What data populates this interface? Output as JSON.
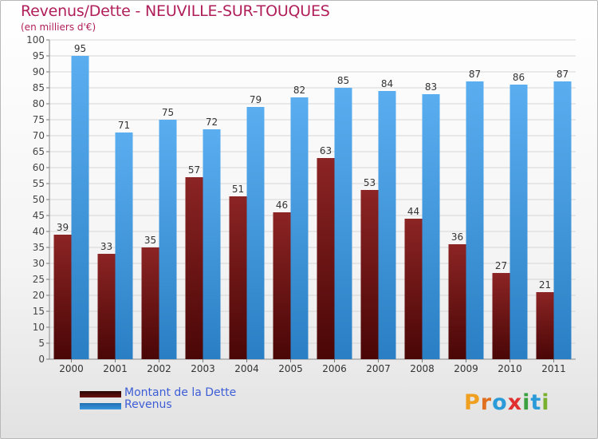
{
  "title": "Revenus/Dette - NEUVILLE-SUR-TOUQUES",
  "subtitle": "(en milliers d'€)",
  "logo": "Proxiti",
  "colors": {
    "dette": "#7a1616",
    "revenus": "#3b98e0",
    "title": "#b01e5a",
    "legend_text": "#3d5dd6",
    "grid": "#d6d6d6"
  },
  "legend": [
    {
      "label": "Montant de la Dette",
      "color": "#6b0f0f"
    },
    {
      "label": "Revenus",
      "color": "#3b98e0"
    }
  ],
  "chart_data": {
    "type": "bar",
    "title": "Revenus/Dette - NEUVILLE-SUR-TOUQUES",
    "ylabel": "(en milliers d'€)",
    "categories": [
      "2000",
      "2001",
      "2002",
      "2003",
      "2004",
      "2005",
      "2006",
      "2007",
      "2008",
      "2009",
      "2010",
      "2011"
    ],
    "series": [
      {
        "name": "Montant de la Dette",
        "values": [
          39,
          33,
          35,
          57,
          51,
          46,
          63,
          53,
          44,
          36,
          27,
          21
        ]
      },
      {
        "name": "Revenus",
        "values": [
          95,
          71,
          75,
          72,
          79,
          82,
          85,
          84,
          83,
          87,
          86,
          87
        ]
      }
    ],
    "ylim": [
      0,
      100
    ],
    "yticks": [
      0,
      5,
      10,
      15,
      20,
      25,
      30,
      35,
      40,
      45,
      50,
      55,
      60,
      65,
      70,
      75,
      80,
      85,
      90,
      95,
      100
    ],
    "grid": true,
    "legend_position": "bottom-left"
  }
}
